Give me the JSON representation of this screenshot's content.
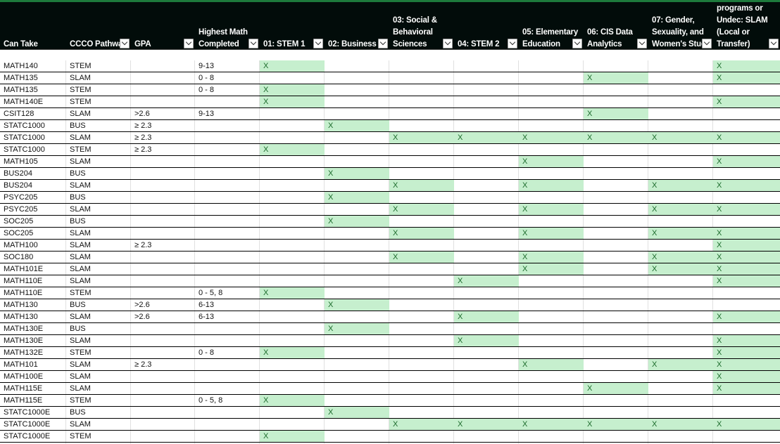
{
  "columns": [
    {
      "key": "can_take",
      "label": "Can Take",
      "filter": false
    },
    {
      "key": "pathway",
      "label": "CCCO Pathwa",
      "filter": true
    },
    {
      "key": "gpa",
      "label": "GPA",
      "filter": true
    },
    {
      "key": "math",
      "label": "Highest Math\nCompleted",
      "filter": true
    },
    {
      "key": "p01",
      "label": "01: STEM 1",
      "filter": true
    },
    {
      "key": "p02",
      "label": "02: Business",
      "filter": true
    },
    {
      "key": "p03",
      "label": "03: Social &\nBehavioral\nSciences",
      "filter": true
    },
    {
      "key": "p04",
      "label": "04: STEM 2",
      "filter": true
    },
    {
      "key": "p05",
      "label": "05: Elementary\nEducation",
      "filter": true
    },
    {
      "key": "p06",
      "label": "06: CIS Data\nAnalytics",
      "filter": true
    },
    {
      "key": "p07",
      "label": "07: Gender,\nSexuality, and\nWomen's Stud",
      "filter": true
    },
    {
      "key": "p08",
      "label": "programs or\nUndec: SLAM\n(Local or\nTransfer)",
      "filter": true
    }
  ],
  "rows": [
    [
      "MATH140",
      "STEM",
      "",
      "9-13",
      "X",
      "",
      "",
      "",
      "",
      "",
      "",
      "X"
    ],
    [
      "MATH135",
      "SLAM",
      "",
      "0 - 8",
      "",
      "",
      "",
      "",
      "",
      "X",
      "",
      "X"
    ],
    [
      "MATH135",
      "STEM",
      "",
      "0 - 8",
      "X",
      "",
      "",
      "",
      "",
      "",
      "",
      ""
    ],
    [
      "MATH140E",
      "STEM",
      "",
      "",
      "X",
      "",
      "",
      "",
      "",
      "",
      "",
      "X"
    ],
    [
      "CSIT128",
      "SLAM",
      ">2.6",
      "9-13",
      "",
      "",
      "",
      "",
      "",
      "X",
      "",
      ""
    ],
    [
      "STATC1000",
      "BUS",
      "≥ 2.3",
      "",
      "",
      "X",
      "",
      "",
      "",
      "",
      "",
      ""
    ],
    [
      "STATC1000",
      "SLAM",
      "≥ 2.3",
      "",
      "",
      "",
      "X",
      "X",
      "X",
      "X",
      "X",
      "X"
    ],
    [
      "STATC1000",
      "STEM",
      "≥ 2.3",
      "",
      "X",
      "",
      "",
      "",
      "",
      "",
      "",
      ""
    ],
    [
      "MATH105",
      "SLAM",
      "",
      "",
      "",
      "",
      "",
      "",
      "X",
      "",
      "",
      "X"
    ],
    [
      "BUS204",
      "BUS",
      "",
      "",
      "",
      "X",
      "",
      "",
      "",
      "",
      "",
      ""
    ],
    [
      "BUS204",
      "SLAM",
      "",
      "",
      "",
      "",
      "X",
      "",
      "X",
      "",
      "X",
      "X"
    ],
    [
      "PSYC205",
      "BUS",
      "",
      "",
      "",
      "X",
      "",
      "",
      "",
      "",
      "",
      ""
    ],
    [
      "PSYC205",
      "SLAM",
      "",
      "",
      "",
      "",
      "X",
      "",
      "X",
      "",
      "X",
      "X"
    ],
    [
      "SOC205",
      "BUS",
      "",
      "",
      "",
      "X",
      "",
      "",
      "",
      "",
      "",
      ""
    ],
    [
      "SOC205",
      "SLAM",
      "",
      "",
      "",
      "",
      "X",
      "",
      "X",
      "",
      "X",
      "X"
    ],
    [
      "MATH100",
      "SLAM",
      "≥ 2.3",
      "",
      "",
      "",
      "",
      "",
      "",
      "",
      "",
      "X"
    ],
    [
      "SOC180",
      "SLAM",
      "",
      "",
      "",
      "",
      "X",
      "",
      "X",
      "",
      "X",
      "X"
    ],
    [
      "MATH101E",
      "SLAM",
      "",
      "",
      "",
      "",
      "",
      "",
      "X",
      "",
      "X",
      "X"
    ],
    [
      "MATH110E",
      "SLAM",
      "",
      "",
      "",
      "",
      "",
      "X",
      "",
      "",
      "",
      "X"
    ],
    [
      "MATH110E",
      "STEM",
      "",
      "0 - 5, 8",
      "X",
      "",
      "",
      "",
      "",
      "",
      "",
      ""
    ],
    [
      "MATH130",
      "BUS",
      ">2.6",
      "6-13",
      "",
      "X",
      "",
      "",
      "",
      "",
      "",
      ""
    ],
    [
      "MATH130",
      "SLAM",
      ">2.6",
      "6-13",
      "",
      "",
      "",
      "X",
      "",
      "",
      "",
      "X"
    ],
    [
      "MATH130E",
      "BUS",
      "",
      "",
      "",
      "X",
      "",
      "",
      "",
      "",
      "",
      ""
    ],
    [
      "MATH130E",
      "SLAM",
      "",
      "",
      "",
      "",
      "",
      "X",
      "",
      "",
      "",
      "X"
    ],
    [
      "MATH132E",
      "STEM",
      "",
      "0 - 8",
      "X",
      "",
      "",
      "",
      "",
      "",
      "",
      "X"
    ],
    [
      "MATH101",
      "SLAM",
      "≥ 2.3",
      "",
      "",
      "",
      "",
      "",
      "X",
      "",
      "X",
      "X"
    ],
    [
      "MATH100E",
      "SLAM",
      "",
      "",
      "",
      "",
      "",
      "",
      "",
      "",
      "",
      "X"
    ],
    [
      "MATH115E",
      "SLAM",
      "",
      "",
      "",
      "",
      "",
      "",
      "",
      "X",
      "",
      "X"
    ],
    [
      "MATH115E",
      "STEM",
      "",
      "0 - 5, 8",
      "X",
      "",
      "",
      "",
      "",
      "",
      "",
      ""
    ],
    [
      "STATC1000E",
      "BUS",
      "",
      "",
      "",
      "X",
      "",
      "",
      "",
      "",
      "",
      ""
    ],
    [
      "STATC1000E",
      "SLAM",
      "",
      "",
      "",
      "",
      "X",
      "X",
      "X",
      "X",
      "X",
      "X"
    ],
    [
      "STATC1000E",
      "STEM",
      "",
      "",
      "X",
      "",
      "",
      "",
      "",
      "",
      "",
      ""
    ]
  ],
  "colors": {
    "header_bg": "#020c0a",
    "x_fill": "#c6efce",
    "x_text": "#1a6a2a",
    "accent": "#1d7a3c"
  }
}
